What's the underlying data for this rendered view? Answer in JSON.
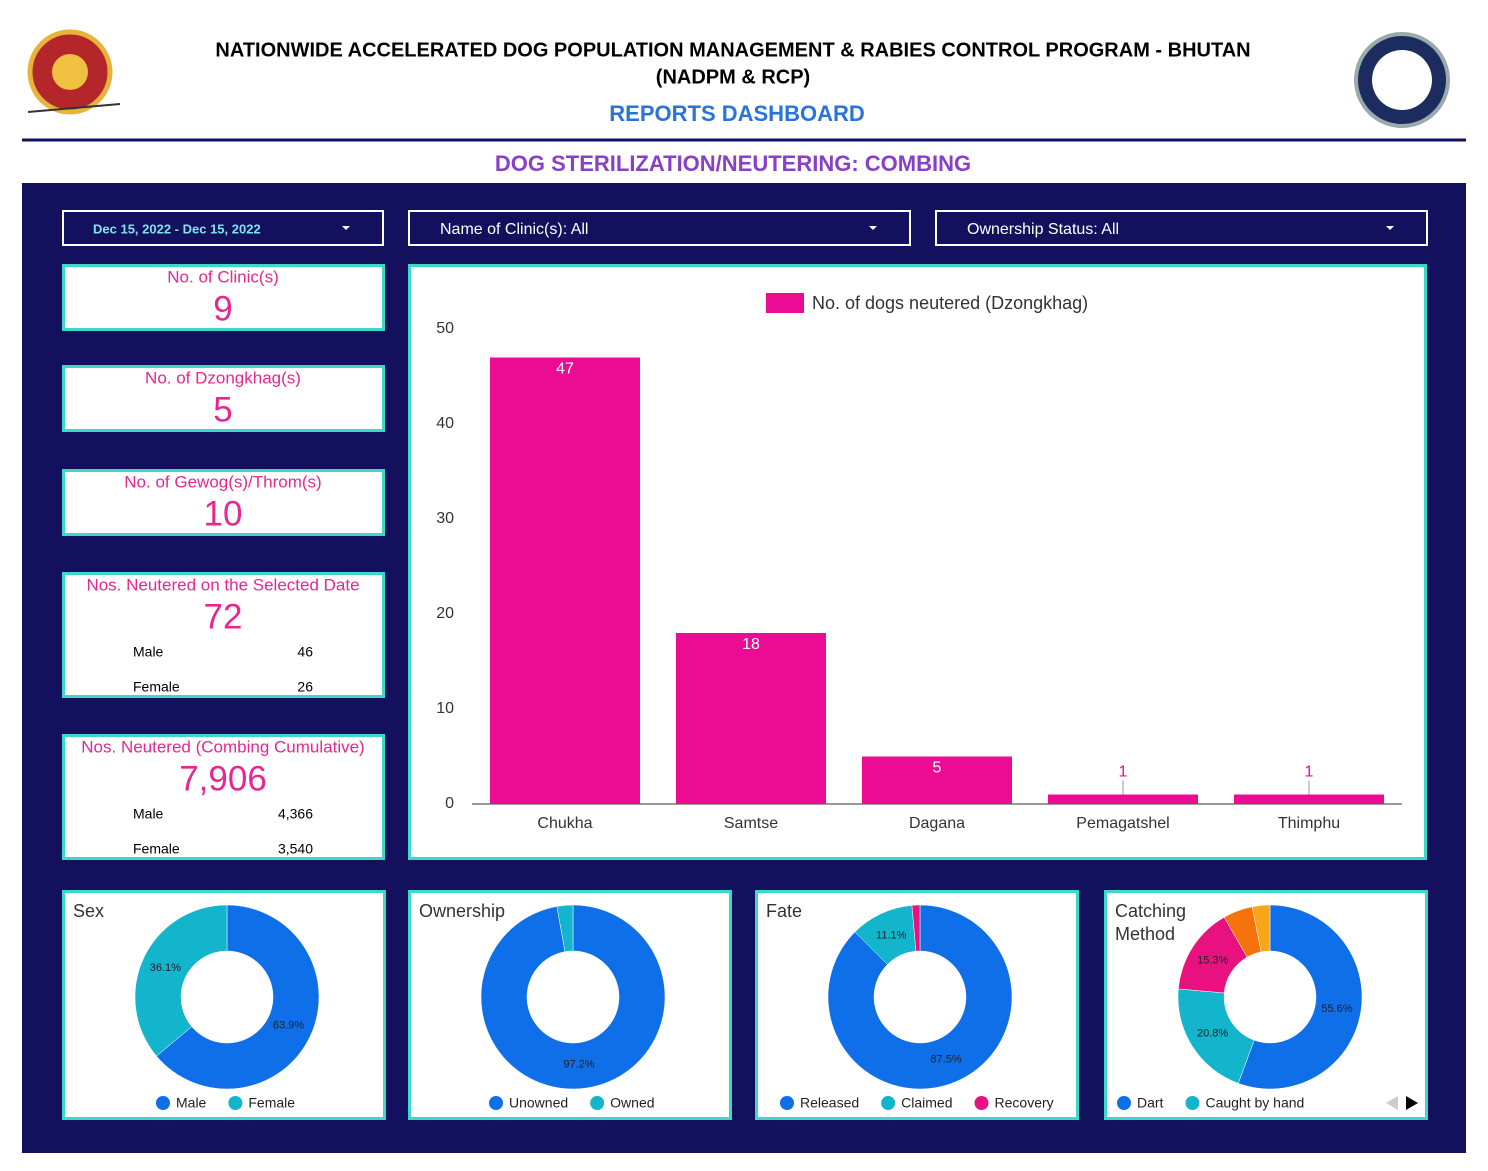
{
  "header": {
    "title": "NATIONWIDE ACCELERATED DOG POPULATION MANAGEMENT & RABIES CONTROL PROGRAM - BHUTAN",
    "subtitle": "(NADPM & RCP)",
    "dashboard": "REPORTS DASHBOARD",
    "section": "DOG STERILIZATION/NEUTERING: COMBING"
  },
  "filters": [
    "Dec 15, 2022 - Dec 15, 2022",
    "Name of Clinic(s): All",
    "Ownership Status: All"
  ],
  "kpis": [
    {
      "title": "No. of Clinic(s)",
      "value": 9
    },
    {
      "title": "No. of Dzongkhag(s)",
      "value": 5
    },
    {
      "title": "No. of Gewog(s)/Throm(s)",
      "value": 10
    },
    {
      "title": "Nos. Neutered on the Selected Date",
      "value": 72,
      "rows": [
        [
          "Male",
          46
        ],
        [
          "Female",
          26
        ]
      ]
    },
    {
      "title": "Nos. Neutered (Combing Cumulative)",
      "value": "7,906",
      "rows": [
        [
          "Male",
          "4,366"
        ],
        [
          "Female",
          "3,540"
        ]
      ]
    }
  ],
  "chart_data": [
    {
      "type": "bar",
      "categories": [
        "Chukha",
        "Samtse",
        "Dagana",
        "Pemagatshel",
        "Thimphu"
      ],
      "series": [
        {
          "name": "No. of dogs neutered (Dzongkhag)",
          "color": "#ec0b93",
          "values": [
            47,
            18,
            5,
            1,
            1
          ]
        }
      ],
      "ylim": [
        0,
        50
      ],
      "yticks": [
        0,
        10,
        20,
        30,
        40,
        50
      ],
      "legend": "top"
    },
    {
      "type": "pie",
      "title": "Sex",
      "categories": [
        "Male",
        "Female"
      ],
      "values": [
        63.9,
        36.1
      ],
      "value_labels": [
        "63.9%",
        "36.1%"
      ],
      "colors": [
        "#0e6fe8",
        "#12b5cb"
      ]
    },
    {
      "type": "pie",
      "title": "Ownership",
      "categories": [
        "Unowned",
        "Owned"
      ],
      "values": [
        97.2,
        2.8
      ],
      "value_labels": [
        "97.2%",
        null
      ],
      "colors": [
        "#0e6fe8",
        "#12b5cb"
      ]
    },
    {
      "type": "pie",
      "title": "Fate",
      "categories": [
        "Released",
        "Claimed",
        "Recovery"
      ],
      "values": [
        87.5,
        11.1,
        1.4
      ],
      "value_labels": [
        "87.5%",
        "11.1%",
        null
      ],
      "colors": [
        "#0e6fe8",
        "#12b5cb",
        "#e8117f"
      ]
    },
    {
      "type": "pie",
      "title": "Catching Method",
      "categories": [
        "Dart",
        "Caught by hand",
        null,
        null,
        null
      ],
      "values": [
        55.6,
        20.8,
        15.3,
        5.2,
        3.1
      ],
      "value_labels": [
        "55.6%",
        "20.8%",
        "15.3%",
        null,
        null
      ],
      "colors": [
        "#0e6fe8",
        "#12b5cb",
        "#e8117f",
        "#f5720d",
        "#f8a51a"
      ]
    }
  ]
}
